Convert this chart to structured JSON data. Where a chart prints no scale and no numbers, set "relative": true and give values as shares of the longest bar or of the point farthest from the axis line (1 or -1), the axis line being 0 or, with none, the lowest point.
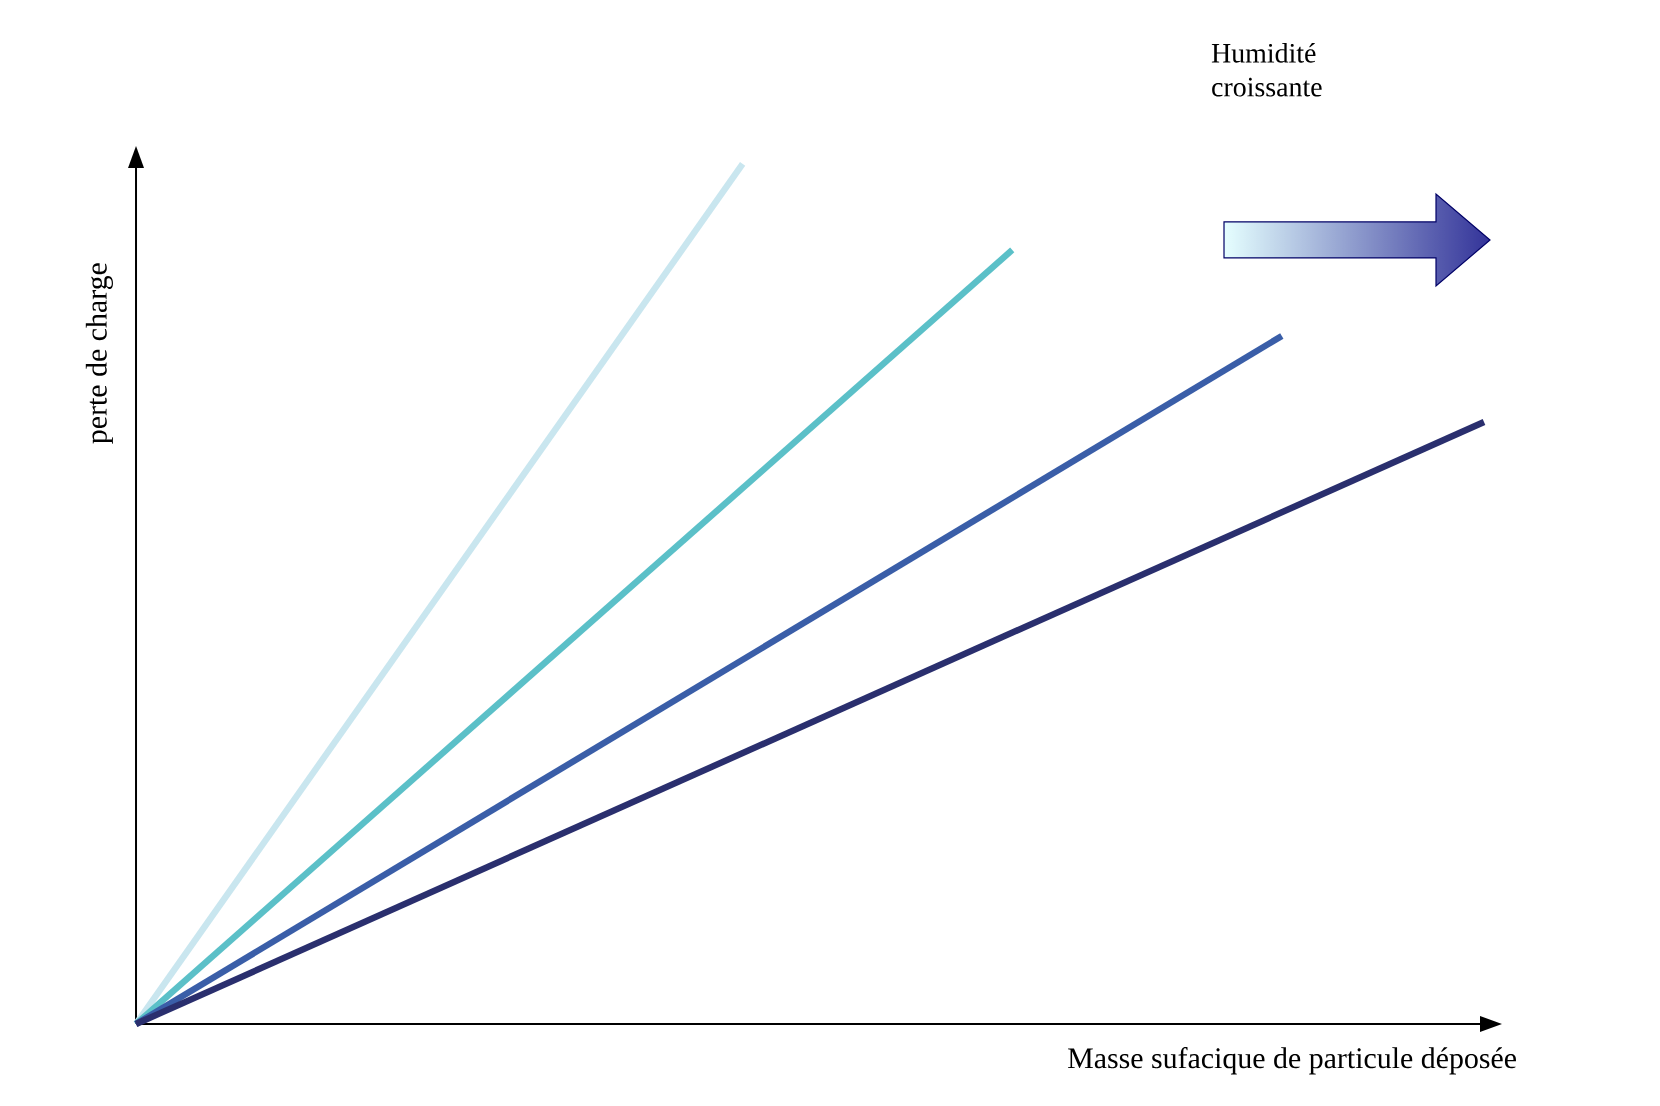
{
  "chart_data": {
    "type": "line",
    "relative": true,
    "xlabel": "Masse sufacique de particule déposée",
    "ylabel": "perte de charge",
    "annotations": [
      "Humidité croissante"
    ],
    "categories": [
      null,
      null,
      null,
      null,
      null,
      null,
      null,
      null,
      null,
      null,
      null,
      null,
      null,
      null,
      null,
      null,
      null,
      null,
      null,
      null,
      null
    ],
    "series": [
      {
        "color": "#c9e6ef",
        "values": [
          0,
          null,
          null,
          null,
          null,
          null,
          null,
          null,
          null,
          1,
          null,
          null,
          null,
          null,
          null,
          null,
          null,
          null,
          null,
          null,
          null
        ]
      },
      {
        "color": "#5bc0c8",
        "values": [
          0,
          null,
          null,
          null,
          null,
          null,
          null,
          null,
          null,
          null,
          null,
          null,
          null,
          0.9,
          null,
          null,
          null,
          null,
          null,
          null,
          null
        ]
      },
      {
        "color": "#3a5ea8",
        "values": [
          0,
          null,
          null,
          null,
          null,
          null,
          null,
          null,
          null,
          null,
          null,
          null,
          null,
          null,
          null,
          null,
          null,
          0.8,
          null,
          null,
          null
        ]
      },
      {
        "color": "#2a2f6e",
        "values": [
          0,
          null,
          null,
          null,
          null,
          null,
          null,
          null,
          null,
          null,
          null,
          null,
          null,
          null,
          null,
          null,
          null,
          null,
          null,
          null,
          0.7
        ]
      }
    ]
  }
}
